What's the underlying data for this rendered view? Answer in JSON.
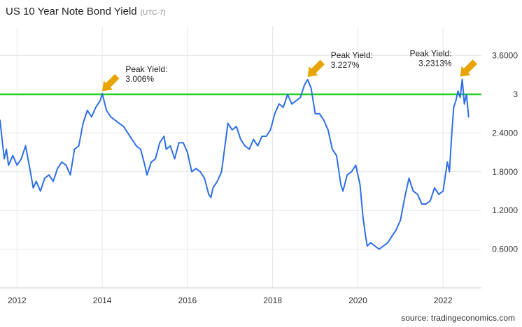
{
  "title": "US 10 Year Note Bond Yield",
  "timezone": "(UTC-7)",
  "source": "source: tradingeconomics.com",
  "colors": {
    "line": "#2f6fe6",
    "reference": "#22d022",
    "arrow": "#e8a400",
    "grid": "#e6e6e6"
  },
  "chart_data": {
    "type": "line",
    "title": "US 10 Year Note Bond Yield",
    "xlabel": "",
    "ylabel": "",
    "xlim": [
      2011.6,
      2022.9
    ],
    "ylim": [
      0.0,
      4.05
    ],
    "x_ticks": [
      2012,
      2014,
      2016,
      2018,
      2020,
      2022
    ],
    "y_ticks": [
      0.6,
      1.2,
      1.8,
      2.4,
      3.0,
      3.6
    ],
    "y_tick_labels": [
      "0.6000",
      "1.2000",
      "1.8000",
      "2.4000",
      "3",
      "3.6000"
    ],
    "grid": true,
    "y_axis_side": "right",
    "reference_line": {
      "value": 3.0
    },
    "series": [
      {
        "x": [
          2011.6,
          2011.65,
          2011.7,
          2011.75,
          2011.8,
          2011.9,
          2012.0,
          2012.1,
          2012.2,
          2012.3,
          2012.38,
          2012.45,
          2012.55,
          2012.65,
          2012.75,
          2012.85,
          2012.95,
          2013.05,
          2013.15,
          2013.25,
          2013.35,
          2013.45,
          2013.55,
          2013.65,
          2013.75,
          2013.85,
          2013.95,
          2014.0,
          2014.1,
          2014.2,
          2014.3,
          2014.4,
          2014.5,
          2014.6,
          2014.7,
          2014.8,
          2014.9,
          2015.0,
          2015.05,
          2015.15,
          2015.25,
          2015.35,
          2015.45,
          2015.5,
          2015.6,
          2015.7,
          2015.8,
          2015.9,
          2016.0,
          2016.1,
          2016.2,
          2016.3,
          2016.4,
          2016.5,
          2016.55,
          2016.6,
          2016.7,
          2016.8,
          2016.9,
          2016.95,
          2017.05,
          2017.15,
          2017.25,
          2017.35,
          2017.45,
          2017.55,
          2017.65,
          2017.75,
          2017.85,
          2017.95,
          2018.05,
          2018.15,
          2018.25,
          2018.35,
          2018.45,
          2018.55,
          2018.65,
          2018.75,
          2018.82,
          2018.9,
          2019.0,
          2019.1,
          2019.2,
          2019.3,
          2019.4,
          2019.5,
          2019.6,
          2019.65,
          2019.75,
          2019.85,
          2019.95,
          2020.05,
          2020.12,
          2020.17,
          2020.22,
          2020.3,
          2020.4,
          2020.5,
          2020.6,
          2020.7,
          2020.8,
          2020.9,
          2021.0,
          2021.1,
          2021.2,
          2021.25,
          2021.3,
          2021.4,
          2021.5,
          2021.6,
          2021.7,
          2021.8,
          2021.9,
          2022.0,
          2022.1,
          2022.15,
          2022.2,
          2022.25,
          2022.3,
          2022.35,
          2022.4,
          2022.45,
          2022.5,
          2022.55,
          2022.6
        ],
        "values": [
          2.6,
          2.3,
          2.0,
          2.15,
          1.9,
          2.05,
          1.9,
          2.0,
          2.2,
          1.85,
          1.55,
          1.65,
          1.5,
          1.7,
          1.75,
          1.65,
          1.85,
          1.95,
          1.9,
          1.75,
          2.15,
          2.2,
          2.55,
          2.75,
          2.65,
          2.8,
          2.9,
          3.01,
          2.75,
          2.65,
          2.6,
          2.55,
          2.5,
          2.4,
          2.3,
          2.2,
          2.15,
          1.9,
          1.75,
          1.95,
          2.0,
          2.25,
          2.35,
          2.15,
          2.2,
          2.0,
          2.25,
          2.25,
          2.1,
          1.8,
          1.85,
          1.8,
          1.7,
          1.45,
          1.4,
          1.55,
          1.65,
          1.8,
          2.3,
          2.55,
          2.45,
          2.5,
          2.3,
          2.2,
          2.15,
          2.3,
          2.2,
          2.35,
          2.35,
          2.45,
          2.7,
          2.85,
          2.8,
          3.0,
          2.85,
          2.9,
          2.95,
          3.15,
          3.227,
          3.1,
          2.7,
          2.7,
          2.6,
          2.45,
          2.15,
          2.05,
          1.6,
          1.5,
          1.75,
          1.8,
          1.9,
          1.6,
          1.1,
          0.85,
          0.65,
          0.7,
          0.65,
          0.6,
          0.65,
          0.7,
          0.8,
          0.9,
          1.05,
          1.4,
          1.7,
          1.6,
          1.5,
          1.45,
          1.3,
          1.3,
          1.35,
          1.55,
          1.45,
          1.5,
          1.95,
          1.8,
          2.35,
          2.8,
          2.9,
          3.05,
          2.95,
          3.231,
          2.85,
          3.0,
          2.65
        ]
      }
    ],
    "annotations": [
      {
        "x": 2014.0,
        "y": 3.006,
        "label_lines": [
          "Peak Yield:",
          "3.006%"
        ]
      },
      {
        "x": 2018.82,
        "y": 3.227,
        "label_lines": [
          "Peak Yield:",
          "3.227%"
        ]
      },
      {
        "x": 2022.4,
        "y": 3.2313,
        "label_lines": [
          "Peak Yield:",
          "3.2313%"
        ]
      }
    ]
  }
}
